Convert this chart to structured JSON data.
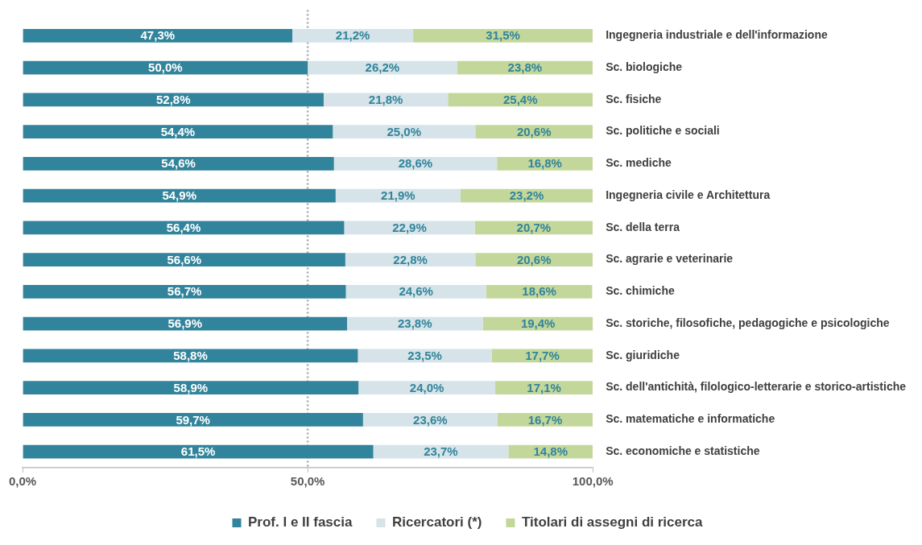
{
  "chart_data": {
    "type": "bar",
    "orientation": "horizontal",
    "stacked": true,
    "categories": [
      "Ingegneria industriale e dell'informazione",
      "Sc. biologiche",
      "Sc. fisiche",
      "Sc. politiche e sociali",
      "Sc. mediche",
      "Ingegneria civile e Architettura",
      "Sc. della terra",
      "Sc. agrarie e veterinarie",
      "Sc. chimiche",
      "Sc. storiche, filosofiche, pedagogiche e psicologiche",
      "Sc. giuridiche",
      "Sc. dell'antichità, filologico-letterarie e storico-artistiche",
      "Sc. matematiche e informatiche",
      "Sc. economiche e statistiche"
    ],
    "series": [
      {
        "name": "Prof. I e II fascia",
        "color": "#31849b",
        "values": [
          47.3,
          50.0,
          52.8,
          54.4,
          54.6,
          54.9,
          56.4,
          56.6,
          56.7,
          56.9,
          58.8,
          58.9,
          59.7,
          61.5
        ],
        "value_labels": [
          "47,3%",
          "50,0%",
          "52,8%",
          "54,4%",
          "54,6%",
          "54,9%",
          "56,4%",
          "56,6%",
          "56,7%",
          "56,9%",
          "58,8%",
          "58,9%",
          "59,7%",
          "61,5%"
        ]
      },
      {
        "name": "Ricercatori (*)",
        "color": "#d6e3e8",
        "values": [
          21.2,
          26.2,
          21.8,
          25.0,
          28.6,
          21.9,
          22.9,
          22.8,
          24.6,
          23.8,
          23.5,
          24.0,
          23.6,
          23.7
        ],
        "value_labels": [
          "21,2%",
          "26,2%",
          "21,8%",
          "25,0%",
          "28,6%",
          "21,9%",
          "22,9%",
          "22,8%",
          "24,6%",
          "23,8%",
          "23,5%",
          "24,0%",
          "23,6%",
          "23,7%"
        ]
      },
      {
        "name": "Titolari di assegni di ricerca",
        "color": "#c4d79b",
        "values": [
          31.5,
          23.8,
          25.4,
          20.6,
          16.8,
          23.2,
          20.7,
          20.6,
          18.6,
          19.4,
          17.7,
          17.1,
          16.7,
          14.8
        ],
        "value_labels": [
          "31,5%",
          "23,8%",
          "25,4%",
          "20,6%",
          "16,8%",
          "23,2%",
          "20,7%",
          "20,6%",
          "18,6%",
          "19,4%",
          "17,7%",
          "17,1%",
          "16,7%",
          "14,8%"
        ]
      }
    ],
    "xlim": [
      0,
      100
    ],
    "xticks": [
      {
        "value": 0,
        "label": "0,0%"
      },
      {
        "value": 50,
        "label": "50,0%"
      },
      {
        "value": 100,
        "label": "100,0%"
      }
    ],
    "ref_lines": [
      {
        "axis": "x",
        "value": 50,
        "color": "#a6a6a6",
        "line_style": "dotted"
      }
    ],
    "grid": false,
    "legend": "bottom"
  }
}
